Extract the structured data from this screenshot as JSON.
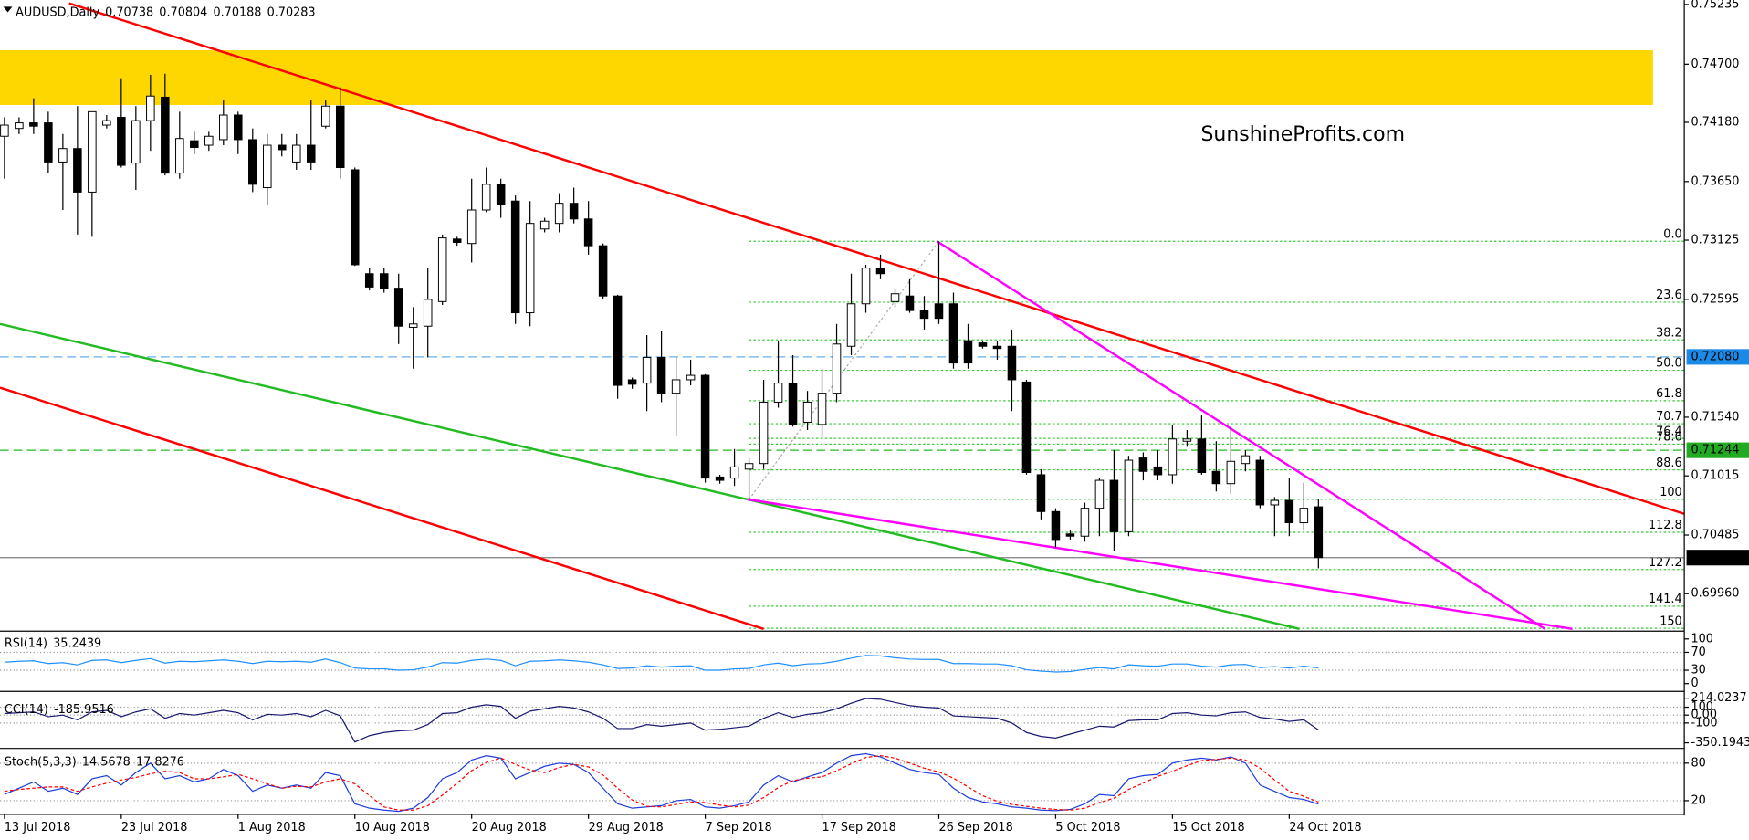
{
  "chart_data": [
    {
      "type": "candlestick",
      "title": "AUDUSD,Daily",
      "categories": [
        "13 Jul 2018",
        null,
        null,
        null,
        null,
        null,
        null,
        null,
        "23 Jul 2018",
        null,
        null,
        null,
        null,
        null,
        null,
        null,
        "1 Aug 2018",
        null,
        null,
        null,
        null,
        null,
        null,
        null,
        "10 Aug 2018",
        null,
        null,
        null,
        null,
        null,
        null,
        null,
        "20 Aug 2018",
        null,
        null,
        null,
        null,
        null,
        null,
        null,
        "29 Aug 2018",
        null,
        null,
        null,
        null,
        null,
        null,
        null,
        "7 Sep 2018",
        null,
        null,
        null,
        null,
        null,
        null,
        null,
        "17 Sep 2018",
        null,
        null,
        null,
        null,
        null,
        null,
        null,
        "26 Sep 2018",
        null,
        null,
        null,
        null,
        null,
        null,
        null,
        "5 Oct 2018",
        null,
        null,
        null,
        null,
        null,
        null,
        null,
        "15 Oct 2018",
        null,
        null,
        null,
        null,
        null,
        null,
        null,
        "24 Oct 2018",
        null,
        null
      ],
      "open": [
        0.74055,
        0.74125,
        0.74175,
        0.74175,
        0.73825,
        0.73945,
        0.73555,
        0.74155,
        0.74225,
        0.73815,
        0.74195,
        0.74405,
        0.73725,
        0.74015,
        0.73975,
        0.74025,
        0.74245,
        0.74025,
        0.73595,
        0.73975,
        0.73825,
        0.73975,
        0.74145,
        0.74325,
        0.73755,
        0.72825,
        0.72825,
        0.72695,
        0.72345,
        0.72355,
        0.72575,
        0.73135,
        0.73095,
        0.73395,
        0.73625,
        0.73475,
        0.72475,
        0.73225,
        0.73275,
        0.73455,
        0.73315,
        0.73075,
        0.72625,
        0.71875,
        0.71845,
        0.72075,
        0.71755,
        0.71875,
        0.71915,
        0.71005,
        0.70995,
        0.71075,
        0.71125,
        0.71675,
        0.71845,
        0.71495,
        0.71475,
        0.71755,
        0.72175,
        0.72555,
        0.72875,
        0.72575,
        0.72625,
        0.72495,
        0.72555,
        0.72555,
        0.72225,
        0.72205,
        0.72175,
        0.72175,
        0.71855,
        0.71025,
        0.70695,
        0.70495,
        0.70475,
        0.70725,
        0.70975,
        0.70515,
        0.71175,
        0.71095,
        0.71025,
        0.71325,
        0.71345,
        0.71055,
        0.70945,
        0.71125,
        0.71155,
        0.70755,
        0.70795,
        0.70595,
        0.70738
      ],
      "high": [
        0.74225,
        0.74225,
        0.74395,
        0.74275,
        0.74075,
        0.74325,
        0.74275,
        0.74245,
        0.74575,
        0.74325,
        0.74605,
        0.74615,
        0.74275,
        0.74095,
        0.74095,
        0.74375,
        0.74275,
        0.74125,
        0.74075,
        0.74075,
        0.74075,
        0.74375,
        0.74375,
        0.74495,
        0.73775,
        0.72875,
        0.72875,
        0.72825,
        0.72525,
        0.72875,
        0.73175,
        0.73155,
        0.73675,
        0.73775,
        0.73675,
        0.73525,
        0.73475,
        0.73325,
        0.73545,
        0.73595,
        0.73475,
        0.73095,
        0.72635,
        0.71895,
        0.72275,
        0.72315,
        0.72075,
        0.72055,
        0.71925,
        0.71025,
        0.71255,
        0.71175,
        0.71875,
        0.72225,
        0.72095,
        0.71775,
        0.71975,
        0.72375,
        0.72825,
        0.72905,
        0.72995,
        0.72695,
        0.72775,
        0.72625,
        0.73115,
        0.72655,
        0.72375,
        0.72225,
        0.72225,
        0.72325,
        0.71875,
        0.71075,
        0.70725,
        0.70525,
        0.70775,
        0.70995,
        0.71245,
        0.71195,
        0.71225,
        0.71245,
        0.71475,
        0.71425,
        0.71555,
        0.71325,
        0.71445,
        0.71245,
        0.71195,
        0.70825,
        0.70995,
        0.70955,
        0.70804
      ],
      "low": [
        0.73675,
        0.74075,
        0.74075,
        0.73725,
        0.73395,
        0.73175,
        0.73155,
        0.74125,
        0.73775,
        0.73575,
        0.73925,
        0.73705,
        0.73675,
        0.73895,
        0.73925,
        0.73975,
        0.73895,
        0.73555,
        0.73445,
        0.73875,
        0.73755,
        0.73755,
        0.74125,
        0.73675,
        0.72895,
        0.72675,
        0.72655,
        0.72195,
        0.71975,
        0.72075,
        0.72545,
        0.73075,
        0.72925,
        0.73375,
        0.73325,
        0.72375,
        0.72355,
        0.73195,
        0.73195,
        0.73275,
        0.72995,
        0.72595,
        0.71705,
        0.71795,
        0.71595,
        0.71675,
        0.71375,
        0.71825,
        0.70955,
        0.70945,
        0.70925,
        0.70805,
        0.71075,
        0.71625,
        0.71455,
        0.71425,
        0.71355,
        0.71675,
        0.72095,
        0.72475,
        0.72775,
        0.72525,
        0.72475,
        0.72325,
        0.72375,
        0.71975,
        0.71975,
        0.72155,
        0.72055,
        0.71595,
        0.71025,
        0.70625,
        0.70375,
        0.70445,
        0.70425,
        0.70475,
        0.70345,
        0.70475,
        0.70975,
        0.70975,
        0.70945,
        0.71275,
        0.71025,
        0.70875,
        0.70855,
        0.71055,
        0.70725,
        0.70475,
        0.70475,
        0.70525,
        0.70188
      ],
      "close": [
        0.74155,
        0.74175,
        0.74145,
        0.73825,
        0.73945,
        0.73555,
        0.74275,
        0.74195,
        0.73795,
        0.74195,
        0.74415,
        0.73725,
        0.74035,
        0.73955,
        0.74055,
        0.74245,
        0.74025,
        0.73625,
        0.73975,
        0.73935,
        0.73975,
        0.73825,
        0.74325,
        0.73775,
        0.72905,
        0.72705,
        0.72695,
        0.72355,
        0.72375,
        0.72595,
        0.73145,
        0.73105,
        0.73395,
        0.73625,
        0.73445,
        0.72475,
        0.73275,
        0.73295,
        0.73455,
        0.73315,
        0.73075,
        0.72625,
        0.71825,
        0.71835,
        0.72075,
        0.71755,
        0.71875,
        0.71915,
        0.70995,
        0.70975,
        0.71095,
        0.71125,
        0.71675,
        0.71845,
        0.71475,
        0.71675,
        0.71755,
        0.72195,
        0.72555,
        0.72875,
        0.72825,
        0.72645,
        0.72495,
        0.72425,
        0.72425,
        0.72025,
        0.72025,
        0.72175,
        0.72155,
        0.71875,
        0.71045,
        0.70695,
        0.70445,
        0.70475,
        0.70725,
        0.70975,
        0.70515,
        0.71155,
        0.71055,
        0.71025,
        0.71345,
        0.71345,
        0.71045,
        0.70945,
        0.71145,
        0.71195,
        0.70755,
        0.70795,
        0.70595,
        0.70725,
        0.70283
      ],
      "up_color": "#ffffff",
      "down_color": "#000000",
      "ylim": [
        0.69645,
        0.75275
      ],
      "yticks": [
        0.75235,
        {
          "value": 0.747,
          "label": "0.74700"
        },
        {
          "value": 0.7418,
          "label": "0.74180"
        },
        {
          "value": 0.7365,
          "label": "0.73650"
        },
        0.73125,
        0.72595,
        {
          "value": 0.7154,
          "label": "0.71540"
        },
        0.71015,
        0.70485,
        {
          "value": 0.6996,
          "label": "0.69960"
        }
      ],
      "zones": [
        {
          "from": 0.74335,
          "to": 0.74825,
          "color": "#ffd700"
        }
      ],
      "trendlines": [
        {
          "color": "#ff0000",
          "points": [
            [
              4.43,
              0.75245
            ],
            [
              115.05,
              0.70675
            ]
          ]
        },
        {
          "color": "#ff0000",
          "points": [
            [
              -0.31,
              0.71805
            ],
            [
              52.0,
              0.69645
            ]
          ]
        },
        {
          "color": "#22bb22",
          "points": [
            [
              -0.31,
              0.72375
            ],
            [
              88.7,
              0.69645
            ]
          ]
        },
        {
          "color": "#ff00ff",
          "points": [
            [
              63.87,
              0.73115
            ],
            [
              105.5,
              0.69645
            ]
          ]
        },
        {
          "color": "#ff00ff",
          "points": [
            [
              50.88,
              0.70805
            ],
            [
              107.4,
              0.69645
            ]
          ]
        }
      ],
      "price_lines": [
        {
          "value": 0.7208,
          "label": "0.72080",
          "color": "#6aaee6",
          "label_color": "#1a8ae6",
          "style": "dashed"
        },
        {
          "value": 0.71244,
          "color": "#22bb22",
          "label_color": "#22aa22",
          "style": "dashed"
        },
        {
          "value": 0.70283,
          "color": "#808080",
          "label_color": "#000000",
          "style": "solid"
        }
      ],
      "fibonacci": {
        "color": "#33cc33",
        "from": 0.70805,
        "to": 0.73115,
        "from_index": 51,
        "to_index": 64,
        "levels": [
          {
            "value": 0,
            "label": "0.0"
          },
          23.6,
          38.2,
          {
            "value": 50,
            "label": "50.0"
          },
          61.8,
          70.7,
          76.4,
          78.6,
          88.6,
          100,
          112.8,
          127.2,
          141.4,
          150
        ]
      },
      "watermark": "SunshineProfits.com",
      "watermark_color": "#e31837"
    },
    {
      "type": "line",
      "title": "RSI(14)",
      "color": "#1e90ff",
      "values": [
        48,
        50,
        51,
        45,
        47,
        42,
        52,
        53,
        47,
        52,
        56,
        46,
        50,
        49,
        51,
        53,
        50,
        45,
        50,
        49,
        50,
        48,
        55,
        47,
        35,
        33,
        33,
        30,
        31,
        37,
        47,
        46,
        52,
        55,
        52,
        40,
        50,
        51,
        53,
        51,
        48,
        42,
        34,
        35,
        40,
        37,
        39,
        40,
        30,
        30,
        33,
        34,
        42,
        46,
        40,
        44,
        45,
        50,
        57,
        63,
        62,
        58,
        55,
        54,
        54,
        45,
        45,
        44,
        44,
        40,
        31,
        28,
        26,
        27,
        32,
        36,
        33,
        42,
        40,
        39,
        44,
        44,
        39,
        37,
        42,
        43,
        36,
        38,
        35,
        39,
        35.2439
      ],
      "ylim": [
        0,
        100
      ],
      "yticks": [
        0,
        30,
        70,
        100
      ]
    },
    {
      "type": "line",
      "title": "CCI(14)",
      "color": "#191970",
      "values": [
        20,
        30,
        40,
        -20,
        0,
        -60,
        40,
        60,
        -20,
        40,
        80,
        -40,
        20,
        0,
        30,
        60,
        30,
        -60,
        10,
        0,
        20,
        -20,
        60,
        -10,
        -340,
        -260,
        -220,
        -200,
        -190,
        -120,
        20,
        30,
        100,
        130,
        110,
        -40,
        50,
        80,
        110,
        90,
        40,
        -40,
        -170,
        -170,
        -120,
        -140,
        -120,
        -100,
        -190,
        -180,
        -160,
        -140,
        -40,
        30,
        -30,
        10,
        30,
        80,
        150,
        210,
        200,
        160,
        120,
        100,
        90,
        -10,
        -20,
        -30,
        -40,
        -100,
        -220,
        -270,
        -290,
        -240,
        -190,
        -140,
        -150,
        -70,
        -60,
        -60,
        20,
        30,
        0,
        -10,
        30,
        40,
        -30,
        -50,
        -80,
        -60,
        -185.9516
      ],
      "ylim": [
        -350.1943,
        214.0237
      ],
      "yticks": [
        -350.1943,
        -100,
        {
          "value": 0,
          "label": "0.00"
        },
        100,
        214.0237
      ]
    },
    {
      "type": "line",
      "title": "Stoch(5,3,3)",
      "series": [
        {
          "color": "#1f3fdc",
          "style": "solid",
          "values": [
            30,
            40,
            50,
            35,
            40,
            30,
            55,
            60,
            45,
            65,
            80,
            55,
            60,
            50,
            55,
            70,
            60,
            35,
            45,
            40,
            45,
            40,
            65,
            60,
            15,
            8,
            5,
            3,
            8,
            25,
            55,
            65,
            85,
            92,
            88,
            55,
            65,
            75,
            80,
            78,
            65,
            40,
            15,
            8,
            10,
            12,
            20,
            22,
            10,
            8,
            12,
            18,
            45,
            60,
            50,
            58,
            65,
            80,
            92,
            95,
            90,
            80,
            70,
            65,
            62,
            40,
            25,
            18,
            15,
            10,
            8,
            5,
            4,
            6,
            15,
            30,
            28,
            55,
            60,
            62,
            80,
            85,
            88,
            85,
            90,
            80,
            45,
            35,
            25,
            22,
            14.5678
          ]
        },
        {
          "color": "#ff0000",
          "style": "dashed",
          "values": [
            35,
            38,
            40,
            42,
            42,
            35,
            42,
            48,
            53,
            57,
            63,
            67,
            65,
            55,
            55,
            58,
            62,
            55,
            47,
            40,
            43,
            42,
            50,
            55,
            47,
            28,
            10,
            5,
            5,
            12,
            29,
            48,
            68,
            81,
            88,
            78,
            69,
            65,
            73,
            78,
            74,
            61,
            40,
            21,
            11,
            10,
            14,
            18,
            17,
            13,
            10,
            13,
            25,
            41,
            52,
            56,
            58,
            68,
            79,
            89,
            92,
            88,
            80,
            72,
            66,
            56,
            42,
            28,
            19,
            14,
            11,
            8,
            6,
            5,
            8,
            17,
            24,
            38,
            48,
            59,
            67,
            76,
            84,
            86,
            88,
            85,
            72,
            53,
            35,
            27,
            17.8276
          ]
        }
      ],
      "ylim": [
        0,
        100
      ],
      "yticks": [
        20,
        80
      ]
    }
  ]
}
